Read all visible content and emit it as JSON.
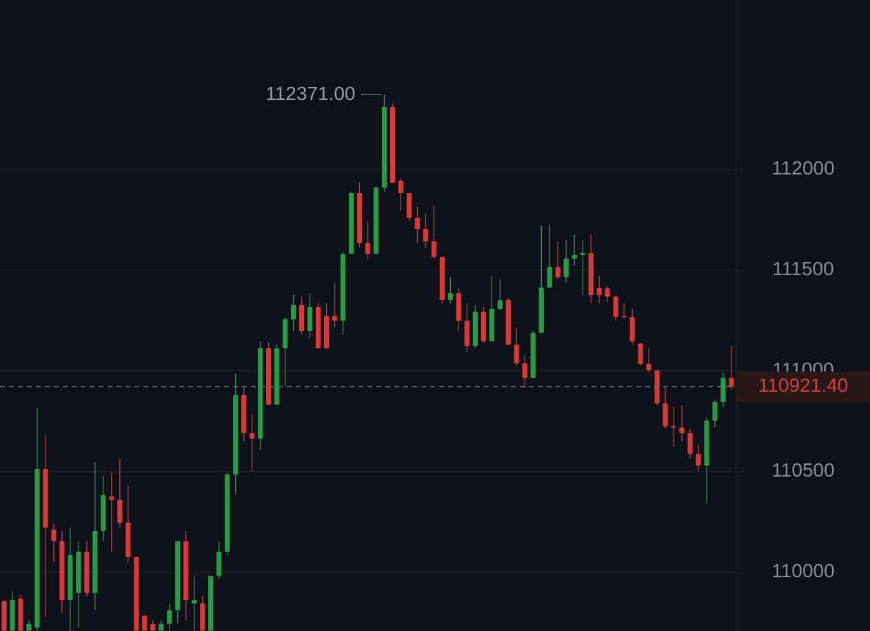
{
  "chart_data": {
    "type": "candlestick",
    "up_color": "#2b9a48",
    "down_color": "#d33b3b",
    "grid": true,
    "ylim": [
      109708,
      112842
    ],
    "yticks": [
      110000,
      110500,
      111000,
      111500,
      112000
    ],
    "open": [
      109856,
      109710,
      109869,
      109710,
      109726,
      110513,
      110212,
      110154,
      109862,
      109897,
      110102,
      109897,
      110205,
      110376,
      110359,
      110246,
      110075,
      109784,
      109743,
      109710,
      109743,
      109811,
      110154,
      109845,
      109845,
      109710,
      109982,
      110102,
      110486,
      110880,
      110691,
      110664,
      111112,
      110832,
      111112,
      111256,
      111328,
      111198,
      111318,
      111273,
      111273,
      111249,
      111582,
      111883,
      111636,
      111582,
      111910,
      112311,
      111945,
      111883,
      111760,
      111705,
      111643,
      111565,
      111352,
      111386,
      111249,
      111123,
      111294,
      111147,
      111308,
      111352,
      111130,
      111037,
      110965,
      111188,
      111414,
      111517,
      111465,
      111558,
      111575,
      111585,
      111410,
      111410,
      111369,
      111273,
      111267,
      111136,
      111034,
      111003,
      110839,
      110725,
      110719,
      110691,
      110588,
      110530,
      110753,
      110845,
      110965
    ],
    "high": [
      109862,
      109904,
      109890,
      109760,
      110815,
      110684,
      110239,
      110205,
      110222,
      110154,
      110154,
      110547,
      110479,
      110496,
      110565,
      110428,
      110075,
      109784,
      109760,
      109760,
      109845,
      110154,
      110205,
      109982,
      109880,
      109982,
      110154,
      110496,
      110986,
      110924,
      110787,
      111147,
      111140,
      111130,
      111267,
      111380,
      111369,
      111386,
      111335,
      111335,
      111438,
      111592,
      111890,
      111934,
      111739,
      111917,
      112371,
      112328,
      111958,
      111883,
      111815,
      111780,
      111821,
      111568,
      111465,
      111410,
      111335,
      111328,
      111318,
      111472,
      111455,
      111362,
      111215,
      111078,
      111198,
      111722,
      111729,
      111643,
      111650,
      111678,
      111650,
      111678,
      111472,
      111421,
      111376,
      111335,
      111308,
      111140,
      111112,
      111003,
      110917,
      110821,
      110828,
      110712,
      110633,
      110770,
      110856,
      110993,
      111123
    ],
    "low": [
      109710,
      109710,
      109710,
      109710,
      109710,
      109777,
      110051,
      109794,
      109710,
      109726,
      109880,
      109811,
      110154,
      110102,
      110222,
      110051,
      109710,
      109710,
      109710,
      109710,
      109710,
      109743,
      109760,
      109710,
      109710,
      109710,
      109965,
      110085,
      110386,
      110650,
      110499,
      110606,
      110832,
      110832,
      110924,
      111198,
      111181,
      111164,
      111112,
      111112,
      111215,
      111181,
      111582,
      111616,
      111558,
      111582,
      111890,
      111934,
      111797,
      111746,
      111636,
      111609,
      111558,
      111335,
      111335,
      111198,
      111095,
      111112,
      111140,
      111147,
      111301,
      111130,
      111027,
      110917,
      110965,
      111188,
      111410,
      111455,
      111438,
      111523,
      111376,
      111335,
      111335,
      111342,
      111249,
      111260,
      111130,
      111027,
      110993,
      110828,
      110712,
      110623,
      110650,
      110565,
      110506,
      110342,
      110719,
      110821,
      110907
    ],
    "close": [
      109710,
      109862,
      109710,
      109743,
      110513,
      110222,
      110154,
      109862,
      110085,
      110102,
      109897,
      110205,
      110383,
      110359,
      110246,
      110075,
      109710,
      109710,
      109710,
      109743,
      109811,
      110154,
      109862,
      109862,
      109710,
      109982,
      110102,
      110486,
      110880,
      110691,
      110664,
      111112,
      110832,
      111112,
      111256,
      111328,
      111198,
      111318,
      111112,
      111112,
      111249,
      111582,
      111883,
      111636,
      111582,
      111910,
      112311,
      111934,
      111883,
      111760,
      111705,
      111643,
      111565,
      111352,
      111386,
      111249,
      111123,
      111294,
      111147,
      111308,
      111352,
      111130,
      111037,
      110965,
      111188,
      111414,
      111517,
      111465,
      111558,
      111575,
      111585,
      111376,
      111376,
      111369,
      111267,
      111267,
      111147,
      111034,
      111003,
      110839,
      110725,
      110719,
      110691,
      110588,
      110530,
      110753,
      110845,
      110965,
      110921.4
    ],
    "high_annotation": {
      "value": 112371,
      "label": "112371.00"
    },
    "last_price": {
      "value": 110921.4,
      "label": "110921.40"
    }
  }
}
